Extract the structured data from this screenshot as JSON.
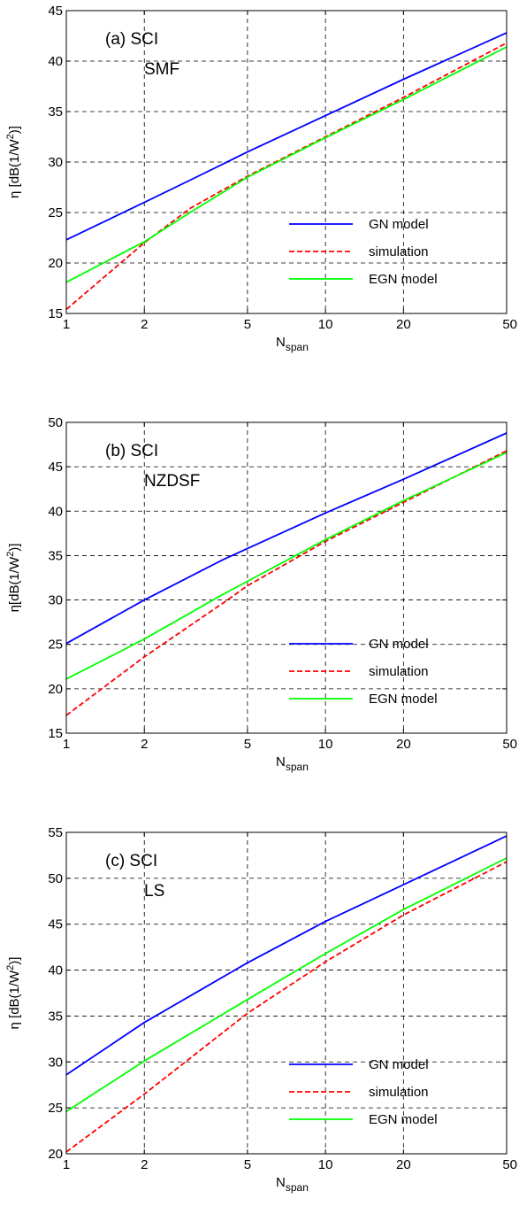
{
  "chart_data": [
    {
      "type": "line",
      "annotation": [
        "(a) SCI",
        "SMF"
      ],
      "xlabel": {
        "main": "N",
        "sub": "span"
      },
      "ylabel": {
        "pre": "η [dB(1/W",
        "sup": "2",
        "post": ")]"
      },
      "xscale": "log",
      "xlim": [
        1,
        50
      ],
      "ylim": [
        15,
        45
      ],
      "xticks": [
        1,
        2,
        5,
        10,
        20,
        50
      ],
      "yticks": [
        15,
        20,
        25,
        30,
        35,
        40,
        45
      ],
      "grid": true,
      "legend_position": "lower-right",
      "x": [
        1,
        2,
        3,
        5,
        10,
        20,
        50
      ],
      "series": [
        {
          "name": "GN model",
          "color": "#0000ff",
          "dash": "solid",
          "values": [
            22.3,
            26.0,
            28.2,
            31.0,
            34.6,
            38.2,
            42.8
          ]
        },
        {
          "name": "simulation",
          "color": "#ff0000",
          "dash": "dashed",
          "values": [
            15.4,
            22.0,
            25.4,
            28.6,
            32.5,
            36.4,
            41.8
          ]
        },
        {
          "name": "EGN model",
          "color": "#00ff00",
          "dash": "solid",
          "values": [
            18.1,
            22.1,
            25.0,
            28.5,
            32.4,
            36.2,
            41.4
          ]
        }
      ]
    },
    {
      "type": "line",
      "annotation": [
        "(b) SCI",
        "NZDSF"
      ],
      "xlabel": {
        "main": "N",
        "sub": "span"
      },
      "ylabel": {
        "pre": "η[dB(1/W",
        "sup": "2",
        "post": ")]"
      },
      "xscale": "log",
      "xlim": [
        1,
        50
      ],
      "ylim": [
        15,
        50
      ],
      "xticks": [
        1,
        2,
        5,
        10,
        20,
        50
      ],
      "yticks": [
        15,
        20,
        25,
        30,
        35,
        40,
        45,
        50
      ],
      "grid": true,
      "legend_position": "lower-right",
      "x": [
        1,
        2,
        4,
        5,
        10,
        20,
        50
      ],
      "series": [
        {
          "name": "GN model",
          "color": "#0000ff",
          "dash": "solid",
          "values": [
            25.1,
            30.0,
            34.5,
            35.8,
            39.8,
            43.6,
            48.8
          ]
        },
        {
          "name": "simulation",
          "color": "#ff0000",
          "dash": "dashed",
          "values": [
            17.0,
            23.6,
            29.6,
            31.6,
            36.6,
            41.0,
            46.8
          ]
        },
        {
          "name": "EGN model",
          "color": "#00ff00",
          "dash": "solid",
          "values": [
            21.1,
            25.6,
            30.6,
            32.1,
            36.8,
            41.2,
            46.6
          ]
        }
      ]
    },
    {
      "type": "line",
      "annotation": [
        "(c) SCI",
        "LS"
      ],
      "xlabel": {
        "main": "N",
        "sub": "span"
      },
      "ylabel": {
        "pre": "η [dB(1/W",
        "sup": "2",
        "post": ")]"
      },
      "xscale": "log",
      "xlim": [
        1,
        50
      ],
      "ylim": [
        20,
        55
      ],
      "xticks": [
        1,
        2,
        5,
        10,
        20,
        50
      ],
      "yticks": [
        20,
        25,
        30,
        35,
        40,
        45,
        50,
        55
      ],
      "grid": true,
      "legend_position": "lower-right",
      "x": [
        1,
        2,
        5,
        10,
        20,
        50
      ],
      "series": [
        {
          "name": "GN model",
          "color": "#0000ff",
          "dash": "solid",
          "values": [
            28.6,
            34.3,
            40.8,
            45.3,
            49.3,
            54.6
          ]
        },
        {
          "name": "simulation",
          "color": "#ff0000",
          "dash": "dashed",
          "values": [
            20.2,
            26.5,
            35.3,
            40.9,
            46.0,
            51.8
          ]
        },
        {
          "name": "EGN model",
          "color": "#00ff00",
          "dash": "solid",
          "values": [
            24.6,
            30.1,
            36.8,
            41.8,
            46.6,
            52.2
          ]
        }
      ]
    }
  ]
}
